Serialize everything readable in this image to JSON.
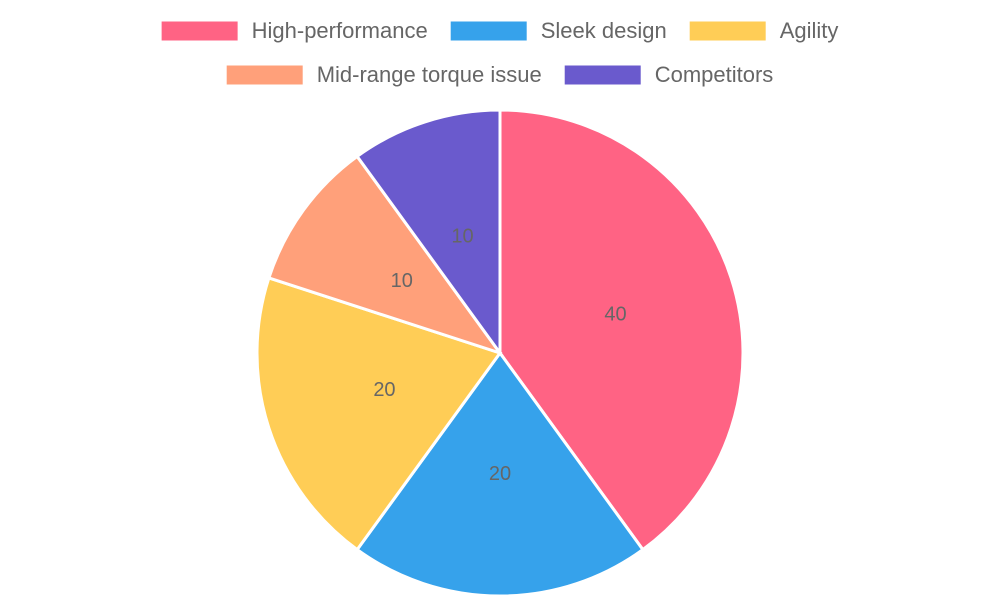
{
  "chart_data": {
    "type": "pie",
    "categories": [
      "High-performance",
      "Sleek design",
      "Agility",
      "Mid-range torque issue",
      "Competitors"
    ],
    "values": [
      40,
      20,
      20,
      10,
      10
    ],
    "colors": [
      "#ff6384",
      "#36a2eb",
      "#ffcd56",
      "#ffa07a",
      "#6a5acd"
    ],
    "legend": "top"
  }
}
